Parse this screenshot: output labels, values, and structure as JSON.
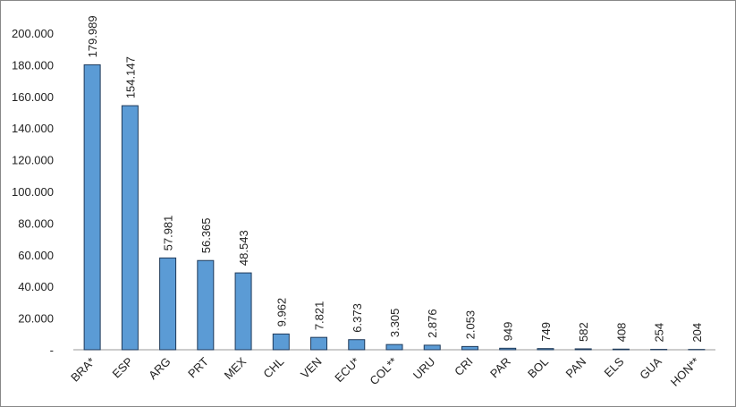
{
  "chart_data": {
    "type": "bar",
    "categories": [
      "BRA*",
      "ESP",
      "ARG",
      "PRT",
      "MEX",
      "CHL",
      "VEN",
      "ECU*",
      "COL**",
      "URU",
      "CRI",
      "PAR",
      "BOL",
      "PAN",
      "ELS",
      "GUA",
      "HON**"
    ],
    "values": [
      179989,
      154147,
      57981,
      56365,
      48543,
      9962,
      7821,
      6373,
      3305,
      2876,
      2053,
      949,
      749,
      582,
      408,
      254,
      204
    ],
    "value_labels": [
      "179.989",
      "154.147",
      "57.981",
      "56.365",
      "48.543",
      "9.962",
      "7.821",
      "6.373",
      "3.305",
      "2.876",
      "2.053",
      "949",
      "749",
      "582",
      "408",
      "254",
      "204"
    ],
    "color": "#5b9bd5",
    "ylim": [
      0,
      200000
    ],
    "yticks": [
      {
        "value": 0,
        "label": "-"
      },
      {
        "value": 20000,
        "label": "20.000"
      },
      {
        "value": 40000,
        "label": "40.000"
      },
      {
        "value": 60000,
        "label": "60.000"
      },
      {
        "value": 80000,
        "label": "80.000"
      },
      {
        "value": 100000,
        "label": "100.000"
      },
      {
        "value": 120000,
        "label": "120.000"
      },
      {
        "value": 140000,
        "label": "140.000"
      },
      {
        "value": 160000,
        "label": "160.000"
      },
      {
        "value": 180000,
        "label": "180.000"
      },
      {
        "value": 200000,
        "label": "200.000"
      }
    ],
    "grid": false
  }
}
